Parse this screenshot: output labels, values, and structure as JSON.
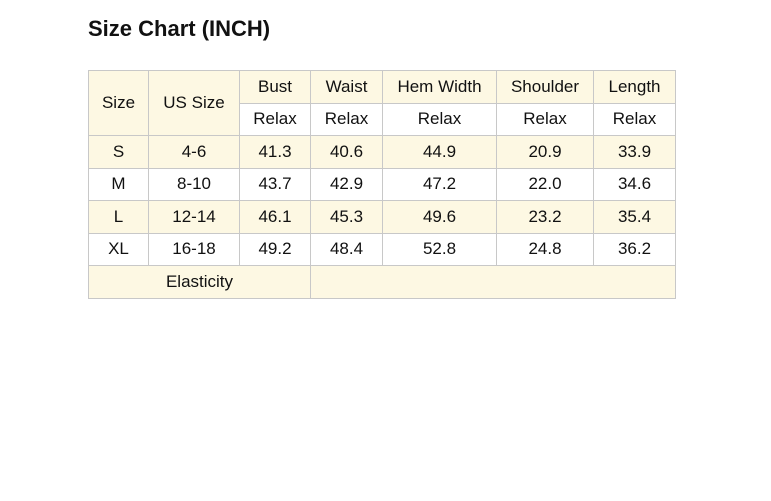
{
  "title": "Size Chart (INCH)",
  "table": {
    "header": {
      "size": "Size",
      "us_size": "US Size",
      "measures": [
        "Bust",
        "Waist",
        "Hem Width",
        "Shoulder",
        "Length"
      ],
      "fits": [
        "Relax",
        "Relax",
        "Relax",
        "Relax",
        "Relax"
      ]
    },
    "rows": [
      [
        "S",
        "4-6",
        "41.3",
        "40.6",
        "44.9",
        "20.9",
        "33.9"
      ],
      [
        "M",
        "8-10",
        "43.7",
        "42.9",
        "47.2",
        "22.0",
        "34.6"
      ],
      [
        "L",
        "12-14",
        "46.1",
        "45.3",
        "49.6",
        "23.2",
        "35.4"
      ],
      [
        "XL",
        "16-18",
        "49.2",
        "48.4",
        "52.8",
        "24.8",
        "36.2"
      ]
    ],
    "footer": {
      "label": "Elasticity"
    }
  }
}
